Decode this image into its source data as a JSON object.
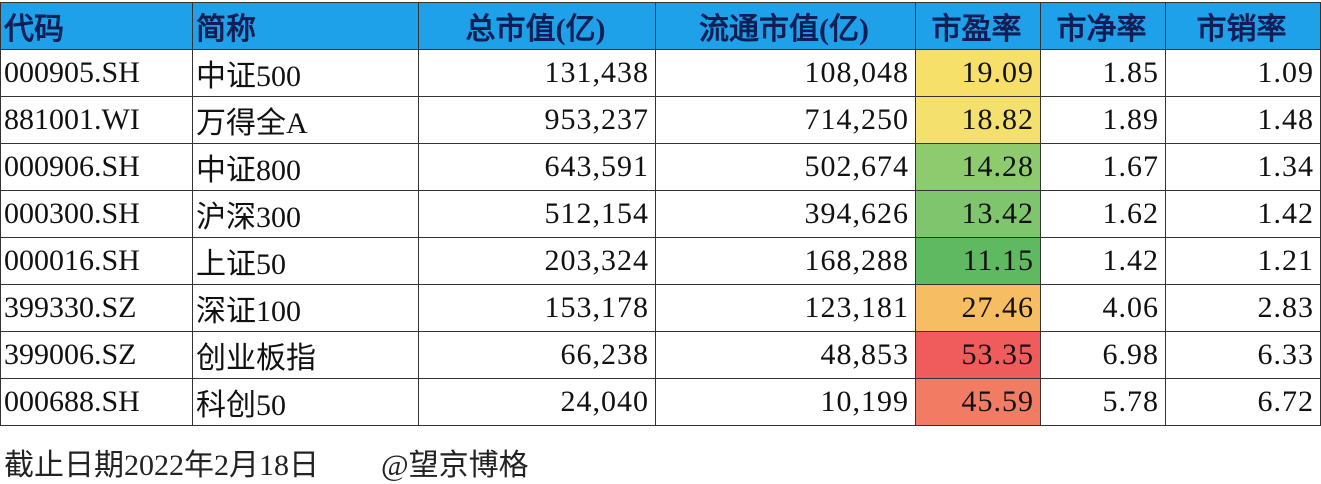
{
  "table": {
    "header": [
      "代码",
      "简称",
      "总市值(亿)",
      "流通市值(亿)",
      "市盈率",
      "市净率",
      "市销率"
    ],
    "rows": [
      [
        "000905.SH",
        "中证500",
        "131,438",
        "108,048",
        "19.09",
        "1.85",
        "1.09"
      ],
      [
        "881001.WI",
        "万得全A",
        "953,237",
        "714,250",
        "18.82",
        "1.89",
        "1.48"
      ],
      [
        "000906.SH",
        "中证800",
        "643,591",
        "502,674",
        "14.28",
        "1.67",
        "1.34"
      ],
      [
        "000300.SH",
        "沪深300",
        "512,154",
        "394,626",
        "13.42",
        "1.62",
        "1.42"
      ],
      [
        "000016.SH",
        "上证50",
        "203,324",
        "168,288",
        "11.15",
        "1.42",
        "1.21"
      ],
      [
        "399330.SZ",
        "深证100",
        "153,178",
        "123,181",
        "27.46",
        "4.06",
        "2.83"
      ],
      [
        "399006.SZ",
        "创业板指",
        "66,238",
        "48,853",
        "53.35",
        "6.98",
        "6.33"
      ],
      [
        "000688.SH",
        "科创50",
        "24,040",
        "10,199",
        "45.59",
        "5.78",
        "6.72"
      ]
    ]
  },
  "footer": {
    "date": "截止日期2022年2月18日",
    "source": "@望京博格"
  }
}
